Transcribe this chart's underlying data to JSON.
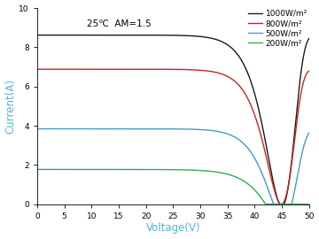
{
  "title_annotation": "25℃  AM=1.5",
  "xlabel": "Voltage(V)",
  "ylabel": "Current(A)",
  "xlabel_color": "#4db8d4",
  "ylabel_color": "#4db8d4",
  "xlim": [
    0,
    50
  ],
  "ylim": [
    0,
    10
  ],
  "xticks": [
    0,
    5,
    10,
    15,
    20,
    25,
    30,
    35,
    40,
    45,
    50
  ],
  "yticks": [
    0,
    2,
    4,
    6,
    8,
    10
  ],
  "curves": [
    {
      "label": "1000W/m²",
      "color": "#1a1a1a",
      "isc": 8.62,
      "voc": 45.4,
      "vmp": 37.0,
      "imp": 8.28,
      "a": 1.8
    },
    {
      "label": "800W/m²",
      "color": "#cc2222",
      "isc": 6.88,
      "voc": 44.8,
      "vmp": 36.5,
      "imp": 6.62,
      "a": 1.8
    },
    {
      "label": "500W/m²",
      "color": "#4499cc",
      "isc": 3.84,
      "voc": 43.5,
      "vmp": 35.5,
      "imp": 3.65,
      "a": 1.8
    },
    {
      "label": "200W/m²",
      "color": "#33aa55",
      "isc": 1.77,
      "voc": 42.0,
      "vmp": 34.0,
      "imp": 1.62,
      "a": 1.8
    }
  ],
  "background_color": "#ffffff",
  "annotation_fontsize": 7.5,
  "legend_fontsize": 6.5,
  "axis_label_fontsize": 8.5,
  "tick_fontsize": 6.5
}
